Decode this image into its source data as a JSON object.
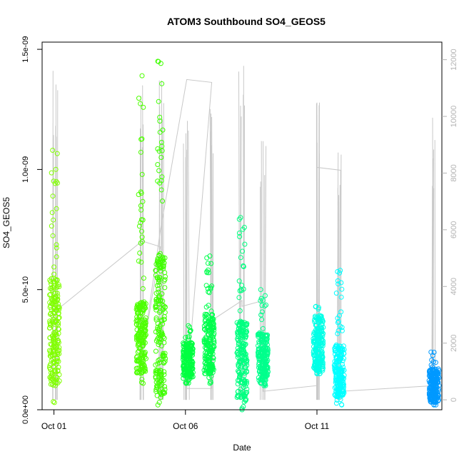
{
  "chart_data": {
    "type": "scatter",
    "title": "ATOM3 Southbound SO4_GEOS5",
    "xlabel": "Date",
    "ylabel": "SO4_GEOS5",
    "x_ticks": [
      {
        "label": "Oct 01",
        "value": 1
      },
      {
        "label": "Oct 06",
        "value": 6
      },
      {
        "label": "Oct 11",
        "value": 11
      }
    ],
    "y_ticks": [
      "0.0e+00",
      "5.0e-10",
      "1.0e-09",
      "1.5e-09"
    ],
    "y_tick_values": [
      0,
      5e-10,
      1e-09,
      1.5e-09
    ],
    "y2_ticks": [
      "0",
      "2000",
      "4000",
      "6000",
      "8000",
      "10000",
      "12000"
    ],
    "y2_tick_values": [
      0,
      2000,
      4000,
      6000,
      8000,
      10000,
      12000
    ],
    "xlim": [
      0.55,
      15.75
    ],
    "ylim": [
      0,
      1.53e-09
    ],
    "y2lim": [
      -350,
      12620
    ],
    "secondary_series_color": "#c8c8c8",
    "point_groups": [
      {
        "x": 1.02,
        "y_min": 3e-11,
        "y_max": 1.08e-09,
        "dense_min": 1e-10,
        "dense_max": 5.5e-10,
        "color": "#80ff00"
      },
      {
        "x": 4.32,
        "y_min": 1.1e-10,
        "y_max": 1.39e-09,
        "dense_min": 1.5e-10,
        "dense_max": 4.5e-10,
        "color": "#4dff00"
      },
      {
        "x": 5.05,
        "y_min": 2e-11,
        "y_max": 1.45e-09,
        "dense_min": 5e-11,
        "dense_max": 6.5e-10,
        "color": "#3fff00"
      },
      {
        "x": 6.1,
        "y_min": 1.1e-10,
        "y_max": 3.5e-10,
        "dense_min": 1.3e-10,
        "dense_max": 2.8e-10,
        "color": "#00ff40"
      },
      {
        "x": 6.9,
        "y_min": 1.1e-10,
        "y_max": 6.4e-10,
        "dense_min": 1.5e-10,
        "dense_max": 4e-10,
        "color": "#00ff4d"
      },
      {
        "x": 8.15,
        "y_min": 0.0,
        "y_max": 8e-10,
        "dense_min": 3e-11,
        "dense_max": 3.7e-10,
        "color": "#00ff80"
      },
      {
        "x": 8.95,
        "y_min": 1e-10,
        "y_max": 5e-10,
        "dense_min": 1.2e-10,
        "dense_max": 3.2e-10,
        "color": "#00ff8c"
      },
      {
        "x": 11.05,
        "y_min": 1.5e-10,
        "y_max": 4.3e-10,
        "dense_min": 1.5e-10,
        "dense_max": 3.9e-10,
        "color": "#00ffe6"
      },
      {
        "x": 11.85,
        "y_min": 2e-11,
        "y_max": 5.8e-10,
        "dense_min": 5e-11,
        "dense_max": 2.7e-10,
        "color": "#00ffff"
      },
      {
        "x": 15.45,
        "y_min": 2e-11,
        "y_max": 2.4e-10,
        "dense_min": 3e-11,
        "dense_max": 1.7e-10,
        "color": "#0099ff"
      }
    ],
    "secondary_spikes": [
      {
        "x": 1.02,
        "y_max": 12000
      },
      {
        "x": 4.32,
        "y_max": 11600
      },
      {
        "x": 5.05,
        "y_max": 12300
      },
      {
        "x": 6.05,
        "y_max": 11300
      },
      {
        "x": 6.95,
        "y_max": 11200
      },
      {
        "x": 8.15,
        "y_max": 11800
      },
      {
        "x": 8.95,
        "y_max": 9500
      },
      {
        "x": 11.05,
        "y_max": 11500
      },
      {
        "x": 11.85,
        "y_max": 10000
      },
      {
        "x": 15.45,
        "y_max": 10000
      }
    ],
    "secondary_path": [
      [
        1.02,
        3100
      ],
      [
        4.35,
        5600
      ],
      [
        5.05,
        5400
      ],
      [
        4.35,
        1500
      ],
      [
        5.05,
        6000
      ],
      [
        6.05,
        11300
      ],
      [
        7.0,
        11200
      ],
      [
        6.05,
        400
      ],
      [
        7.0,
        400
      ],
      [
        7.0,
        2800
      ],
      [
        8.15,
        3500
      ],
      [
        8.15,
        3300
      ],
      [
        8.95,
        3500
      ],
      [
        8.95,
        300
      ],
      [
        11.0,
        500
      ],
      [
        11.0,
        8200
      ],
      [
        11.9,
        8100
      ],
      [
        11.9,
        300
      ],
      [
        15.45,
        500
      ]
    ]
  }
}
